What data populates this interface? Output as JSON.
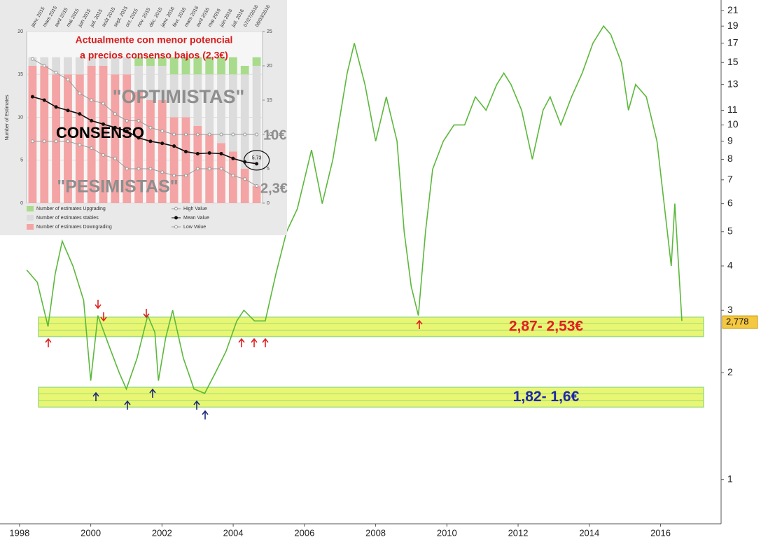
{
  "chart_data": [
    {
      "type": "line",
      "log_scale": true,
      "x": [
        1998.2,
        1998.5,
        1998.8,
        1999.0,
        1999.2,
        1999.5,
        1999.8,
        2000.0,
        2000.2,
        2000.5,
        2000.8,
        2001.0,
        2001.3,
        2001.6,
        2001.8,
        2001.9,
        2002.1,
        2002.3,
        2002.6,
        2002.9,
        2003.2,
        2003.5,
        2003.8,
        2004.1,
        2004.3,
        2004.6,
        2004.9,
        2005.2,
        2005.5,
        2005.8,
        2006.2,
        2006.5,
        2006.8,
        2007.2,
        2007.4,
        2007.7,
        2008.0,
        2008.3,
        2008.6,
        2008.8,
        2009.0,
        2009.2,
        2009.4,
        2009.6,
        2009.9,
        2010.2,
        2010.5,
        2010.8,
        2011.1,
        2011.4,
        2011.6,
        2011.8,
        2012.1,
        2012.4,
        2012.7,
        2012.9,
        2013.2,
        2013.5,
        2013.8,
        2014.1,
        2014.4,
        2014.6,
        2014.9,
        2015.1,
        2015.3,
        2015.6,
        2015.9,
        2016.1,
        2016.3,
        2016.4,
        2016.6
      ],
      "values": [
        3.9,
        3.6,
        2.7,
        3.8,
        4.7,
        4.0,
        3.2,
        1.9,
        2.9,
        2.4,
        2.0,
        1.8,
        2.2,
        2.9,
        2.6,
        1.9,
        2.5,
        3.0,
        2.2,
        1.8,
        1.75,
        2.0,
        2.3,
        2.8,
        3.0,
        2.8,
        2.8,
        3.8,
        5.0,
        5.8,
        8.5,
        6.0,
        8.0,
        14,
        17,
        13,
        9,
        12,
        9,
        5,
        3.5,
        2.9,
        5,
        7.5,
        9,
        10,
        10,
        12,
        11,
        13,
        14,
        13,
        11,
        8,
        11,
        12,
        10,
        12,
        14,
        17,
        19,
        18,
        15,
        11,
        13,
        12,
        9,
        6,
        4,
        6,
        2.8
      ],
      "color": "#5cb83c",
      "xlim": [
        1997.55,
        2017.7
      ],
      "xticks": [
        1998,
        2000,
        2002,
        2004,
        2006,
        2008,
        2010,
        2012,
        2014,
        2016
      ],
      "ylim": [
        0.75,
        22
      ],
      "yticks": [
        1,
        2,
        3,
        4,
        5,
        6,
        7,
        8,
        9,
        10,
        11,
        13,
        15,
        17,
        19,
        21
      ],
      "last_value": {
        "value": 2.778,
        "label": "2,778"
      },
      "bands": [
        {
          "low": 2.53,
          "high": 2.87,
          "label": "2,87- 2,53€",
          "color": "#e02020"
        },
        {
          "low": 1.6,
          "high": 1.82,
          "label": "1,82- 1,6€",
          "color": "#1c28a8"
        }
      ]
    },
    {
      "type": "bar",
      "stacked": true,
      "categories": [
        "janv. 2015",
        "mars 2015",
        "avril 2015",
        "mai 2015",
        "juin 2015",
        "juil. 2015",
        "août 2015",
        "sept. 2015",
        "oct. 2015",
        "nov. 2015",
        "déc. 2015",
        "janv. 2016",
        "févr. 2016",
        "mars 2016",
        "avril 2016",
        "mai 2016",
        "juin 2016",
        "juil. 2016",
        "07/27/2016",
        "08/03/2016"
      ],
      "ylabel": "Number of Estimates",
      "ylim": [
        0,
        20
      ],
      "yticks": [
        0,
        5,
        10,
        15,
        20
      ],
      "y2lim": [
        0,
        25
      ],
      "y2ticks": [
        0,
        5,
        10,
        15,
        20,
        25
      ],
      "series": [
        {
          "name": "Number of estimates Upgrading",
          "color": "#a8dc8c",
          "values": [
            0,
            0,
            0,
            0,
            0,
            0,
            0,
            0,
            0,
            1,
            1,
            1,
            2,
            2,
            2,
            2,
            2,
            2,
            1,
            1
          ]
        },
        {
          "name": "Number of estimates stables",
          "color": "#dcdcdc",
          "values": [
            1,
            1,
            2,
            2,
            2,
            1,
            1,
            2,
            2,
            3,
            4,
            4,
            5,
            5,
            6,
            7,
            8,
            9,
            11,
            14
          ]
        },
        {
          "name": "Number of estimates Downgrading",
          "color": "#f4a4a4",
          "values": [
            16,
            16,
            15,
            15,
            15,
            16,
            16,
            15,
            15,
            13,
            12,
            12,
            10,
            10,
            9,
            8,
            7,
            6,
            4,
            2
          ]
        },
        {
          "name": "High Value",
          "type": "line",
          "axis": "y2",
          "color": "#999999",
          "values": [
            21,
            20,
            19,
            18,
            16,
            15,
            14.5,
            13,
            12,
            12,
            11,
            10.5,
            10,
            10,
            10,
            10,
            10,
            10,
            10,
            10
          ]
        },
        {
          "name": "Mean Value",
          "type": "line",
          "axis": "y2",
          "color": "#111111",
          "values": [
            15.5,
            15,
            14,
            13.5,
            13,
            12,
            11.5,
            11,
            10.5,
            9.5,
            9,
            8.7,
            8.3,
            7.5,
            7.2,
            7.3,
            7.2,
            6.5,
            6,
            5.73
          ],
          "value_labels": [
            null,
            null,
            null,
            null,
            null,
            null,
            null,
            null,
            null,
            null,
            null,
            null,
            null,
            null,
            null,
            null,
            null,
            null,
            null,
            "5.73"
          ]
        },
        {
          "name": "Low Value",
          "type": "line",
          "axis": "y2",
          "color": "#999999",
          "values": [
            9,
            9,
            9,
            9,
            8.5,
            8,
            7,
            6.5,
            5,
            5,
            5,
            4.5,
            4,
            4,
            5,
            5,
            5,
            4,
            3.5,
            2.5
          ]
        }
      ],
      "annotations": [
        "Actualmente con menor potencial",
        "a precios consenso bajos (2,3€)",
        "\"OPTIMISTAS\"",
        "CONSENSO",
        "\"PESIMISTAS\"",
        "10€",
        "2,3€"
      ]
    }
  ]
}
